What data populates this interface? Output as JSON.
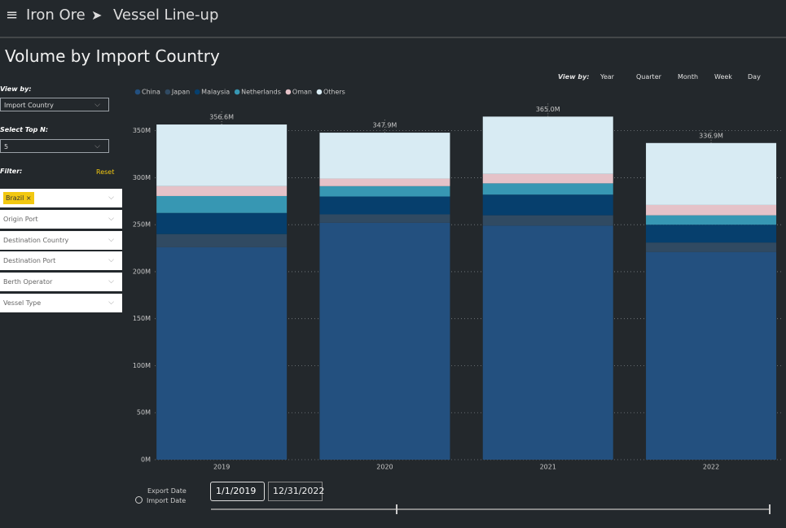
{
  "header": {
    "section": "Iron Ore",
    "page": "Vessel Line-up"
  },
  "view_by": {
    "label": "View by:",
    "options": [
      "Year",
      "Quarter",
      "Month",
      "Week",
      "Day"
    ]
  },
  "panel": {
    "view_by_label": "View by:",
    "view_by_value": "Import Country",
    "top_n_label": "Select Top N:",
    "top_n_value": "5",
    "filter_label": "Filter:",
    "reset": "Reset",
    "filters": [
      "Brazil",
      "Origin Port",
      "Destination Country",
      "Destination Port",
      "Berth Operator",
      "Vessel Type"
    ]
  },
  "date_range": {
    "options": [
      "Export Date",
      "Import Date"
    ],
    "start": "1/1/2019",
    "end": "12/31/2022"
  },
  "chart_data": {
    "type": "stacked_bar",
    "title": "Volume by Import Country",
    "categories": [
      "2019",
      "2020",
      "2021",
      "2022"
    ],
    "series": [
      {
        "name": "China",
        "color": "#23507f",
        "values": [
          226,
          252,
          249,
          221
        ]
      },
      {
        "name": "Japan",
        "color": "#304a62",
        "values": [
          14,
          9,
          11,
          10
        ]
      },
      {
        "name": "Malaysia",
        "color": "#063f6d",
        "values": [
          22.5,
          19,
          22,
          19
        ]
      },
      {
        "name": "Netherlands",
        "color": "#3797b3",
        "values": [
          18,
          11,
          12,
          10
        ]
      },
      {
        "name": "Oman",
        "color": "#e5c2c8",
        "values": [
          10.5,
          8,
          10,
          11
        ]
      },
      {
        "name": "Others",
        "color": "#d8ebf3",
        "values": [
          65.6,
          48.9,
          61,
          65.9
        ]
      }
    ],
    "totals": {
      "values": [
        356.6,
        347.9,
        365.0,
        336.9
      ],
      "value_labels": [
        "356.6M",
        "347.9M",
        "365.0M",
        "336.9M"
      ]
    },
    "ylim": [
      0,
      380
    ],
    "yticks": [
      {
        "value": 0,
        "label": "0M"
      },
      {
        "value": 50,
        "label": "50M"
      },
      {
        "value": 100,
        "label": "100M"
      },
      {
        "value": 150,
        "label": "150M"
      },
      {
        "value": 200,
        "label": "200M"
      },
      {
        "value": 250,
        "label": "250M"
      },
      {
        "value": 300,
        "label": "300M"
      },
      {
        "value": 350,
        "label": "350M"
      }
    ],
    "grid": true,
    "legend": "top"
  }
}
